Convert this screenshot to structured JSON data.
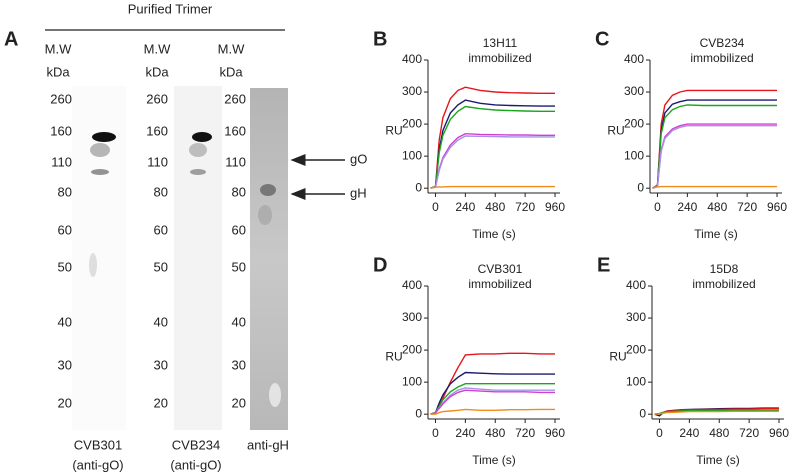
{
  "panel_a": {
    "panel": "A",
    "header": "Purified Trimer",
    "mw": "M.W",
    "unit": "kDa",
    "markers": [
      260,
      160,
      110,
      80,
      60,
      50,
      40,
      30,
      20
    ],
    "lanes": [
      [
        "CVB301",
        "(anti-gO)"
      ],
      [
        "CVB234",
        "(anti-gO)"
      ],
      [
        "anti-gH"
      ]
    ],
    "arrows": [
      "gO",
      "gH"
    ]
  },
  "chart_data": [
    {
      "type": "line",
      "panel": "B",
      "title": "13H11",
      "subtitle": "immobilized",
      "ylabel": "RU",
      "xlabel": "Time (s)",
      "x": [
        -40,
        0,
        30,
        60,
        120,
        180,
        240,
        360,
        480,
        600,
        720,
        840,
        960
      ],
      "xlim": [
        -60,
        1000
      ],
      "xticks": [
        0,
        240,
        480,
        720,
        960
      ],
      "ylim": [
        -15,
        400
      ],
      "yticks": [
        0,
        100,
        200,
        300,
        400
      ],
      "series": [
        {
          "color": "#e8141c",
          "values": [
            0,
            5,
            150,
            220,
            280,
            305,
            315,
            305,
            300,
            298,
            297,
            296,
            296
          ]
        },
        {
          "color": "#1a1a6e",
          "values": [
            0,
            5,
            120,
            180,
            235,
            260,
            275,
            265,
            260,
            258,
            257,
            256,
            256
          ]
        },
        {
          "color": "#1aa61a",
          "values": [
            0,
            5,
            110,
            165,
            215,
            240,
            255,
            248,
            244,
            242,
            241,
            240,
            240
          ]
        },
        {
          "color": "#d040d0",
          "values": [
            0,
            3,
            60,
            95,
            135,
            158,
            170,
            168,
            167,
            166,
            166,
            165,
            165
          ]
        },
        {
          "color": "#a890e8",
          "values": [
            0,
            3,
            55,
            90,
            128,
            150,
            163,
            162,
            161,
            160,
            160,
            160,
            160
          ]
        },
        {
          "color": "#f08c1a",
          "values": [
            0,
            3,
            4,
            4,
            5,
            5,
            5,
            5,
            5,
            5,
            5,
            5,
            5
          ]
        }
      ]
    },
    {
      "type": "line",
      "panel": "C",
      "title": "CVB234",
      "subtitle": "immobilized",
      "ylabel": "RU",
      "xlabel": "Time (s)",
      "x": [
        -40,
        0,
        30,
        60,
        120,
        180,
        240,
        360,
        480,
        600,
        720,
        840,
        960
      ],
      "xlim": [
        -60,
        1000
      ],
      "xticks": [
        0,
        240,
        480,
        720,
        960
      ],
      "ylim": [
        -15,
        400
      ],
      "yticks": [
        0,
        100,
        200,
        300,
        400
      ],
      "series": [
        {
          "color": "#e8141c",
          "values": [
            0,
            10,
            200,
            260,
            290,
            300,
            305,
            305,
            305,
            305,
            305,
            305,
            305
          ]
        },
        {
          "color": "#1a1a6e",
          "values": [
            0,
            8,
            180,
            235,
            262,
            270,
            275,
            275,
            275,
            275,
            275,
            275,
            275
          ]
        },
        {
          "color": "#1aa61a",
          "values": [
            0,
            8,
            170,
            220,
            245,
            255,
            260,
            258,
            258,
            258,
            258,
            258,
            258
          ]
        },
        {
          "color": "#d040d0",
          "values": [
            0,
            6,
            120,
            160,
            185,
            195,
            200,
            200,
            200,
            200,
            200,
            200,
            200
          ]
        },
        {
          "color": "#a890e8",
          "values": [
            0,
            6,
            115,
            155,
            180,
            190,
            195,
            195,
            195,
            195,
            195,
            195,
            195
          ]
        },
        {
          "color": "#f08c1a",
          "values": [
            0,
            4,
            5,
            5,
            5,
            5,
            5,
            5,
            5,
            5,
            5,
            5,
            5
          ]
        }
      ]
    },
    {
      "type": "line",
      "panel": "D",
      "title": "CVB301",
      "subtitle": "immobilized",
      "ylabel": "RU",
      "xlabel": "Time (s)",
      "x": [
        -40,
        0,
        30,
        60,
        120,
        180,
        240,
        360,
        480,
        600,
        720,
        840,
        960
      ],
      "xlim": [
        -60,
        1000
      ],
      "xticks": [
        0,
        240,
        480,
        720,
        960
      ],
      "ylim": [
        -15,
        400
      ],
      "yticks": [
        0,
        100,
        200,
        300,
        400
      ],
      "series": [
        {
          "color": "#e8141c",
          "values": [
            0,
            5,
            25,
            50,
            100,
            145,
            185,
            188,
            188,
            190,
            190,
            188,
            188
          ]
        },
        {
          "color": "#1a1a6e",
          "values": [
            0,
            5,
            35,
            60,
            95,
            115,
            130,
            128,
            126,
            125,
            125,
            125,
            125
          ]
        },
        {
          "color": "#1aa61a",
          "values": [
            0,
            5,
            25,
            45,
            70,
            85,
            95,
            95,
            95,
            95,
            95,
            95,
            95
          ]
        },
        {
          "color": "#a890e8",
          "values": [
            0,
            4,
            20,
            35,
            60,
            75,
            82,
            78,
            75,
            75,
            75,
            75,
            75
          ]
        },
        {
          "color": "#d040d0",
          "values": [
            0,
            4,
            18,
            32,
            55,
            68,
            75,
            72,
            70,
            70,
            70,
            68,
            68
          ]
        },
        {
          "color": "#f08c1a",
          "values": [
            0,
            0,
            5,
            8,
            10,
            12,
            15,
            12,
            12,
            14,
            14,
            15,
            15
          ]
        }
      ]
    },
    {
      "type": "line",
      "panel": "E",
      "title": "15D8",
      "subtitle": "immobilized",
      "ylabel": "RU",
      "xlabel": "Time (s)",
      "x": [
        -40,
        0,
        30,
        60,
        120,
        180,
        240,
        360,
        480,
        600,
        720,
        840,
        960
      ],
      "xlim": [
        -60,
        1000
      ],
      "xticks": [
        0,
        240,
        480,
        720,
        960
      ],
      "ylim": [
        -15,
        400
      ],
      "yticks": [
        0,
        100,
        200,
        300,
        400
      ],
      "series": [
        {
          "color": "#1a1a6e",
          "values": [
            0,
            -5,
            5,
            10,
            12,
            14,
            15,
            16,
            17,
            18,
            18,
            19,
            19
          ]
        },
        {
          "color": "#e8141c",
          "values": [
            0,
            2,
            6,
            9,
            11,
            13,
            14,
            15,
            15,
            16,
            16,
            17,
            17
          ]
        },
        {
          "color": "#1aa61a",
          "values": [
            0,
            2,
            5,
            7,
            9,
            10,
            11,
            11,
            12,
            12,
            12,
            12,
            12
          ]
        },
        {
          "color": "#f08c1a",
          "values": [
            0,
            1,
            3,
            5,
            6,
            7,
            8,
            8,
            8,
            9,
            9,
            9,
            9
          ]
        }
      ]
    }
  ]
}
